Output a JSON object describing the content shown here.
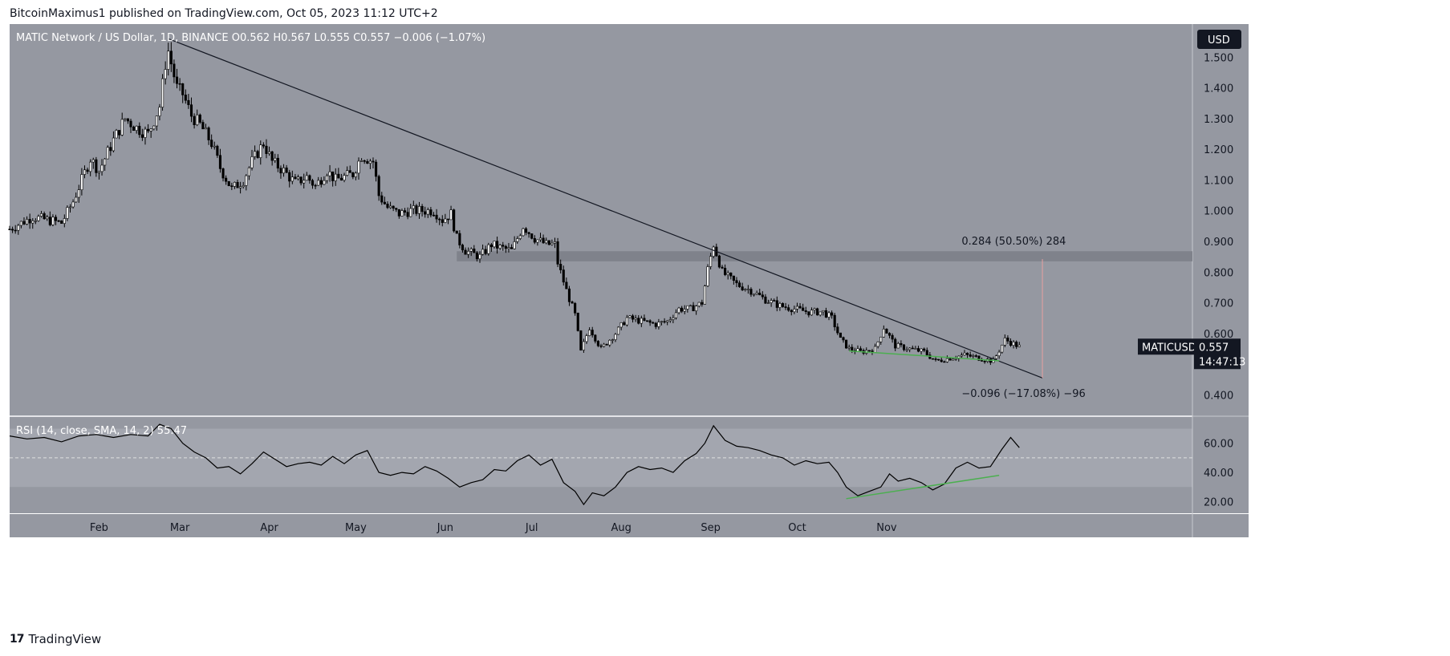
{
  "header": {
    "publisher_text": "BitcoinMaximus1 published on TradingView.com, Oct 05, 2023 11:12 UTC+2"
  },
  "footer": {
    "brand": "TradingView"
  },
  "currency_button": "USD",
  "colors": {
    "background": "#9598a1",
    "rsi_band": "#a3a6af",
    "trendline": "#131722",
    "support_green": "#4caf50",
    "resistance_zone": "#7f828b",
    "candle_up": "#ffffff",
    "candle_down": "#000000"
  },
  "chart_data": [
    {
      "type": "candlestick",
      "title": "MATIC Network / US Dollar, 1D, BINANCE",
      "ohlc": {
        "o_label": "O",
        "o": "0.562",
        "h_label": "H",
        "h": "0.567",
        "l_label": "L",
        "l": "0.555",
        "c_label": "C",
        "c": "0.557",
        "change": "−0.006 (−1.07%)"
      },
      "x_tick_labels": [
        "Feb",
        "Mar",
        "Apr",
        "May",
        "Jun",
        "Jul",
        "Aug",
        "Sep",
        "Oct",
        "Nov"
      ],
      "x_ticks_day_offset": [
        31,
        59,
        90,
        120,
        151,
        181,
        212,
        243,
        273,
        304
      ],
      "y_ticks": [
        0.4,
        0.5,
        0.6,
        0.7,
        0.8,
        0.9,
        1.0,
        1.1,
        1.2,
        1.3,
        1.4,
        1.5
      ],
      "y_tick_labels": [
        "0.400",
        "0.500",
        "0.600",
        "0.700",
        "0.800",
        "0.900",
        "1.000",
        "1.100",
        "1.200",
        "1.300",
        "1.400",
        "1.500"
      ],
      "ylim": [
        0.333,
        1.608
      ],
      "price_points_day_close": [
        [
          0,
          0.94
        ],
        [
          8,
          0.98
        ],
        [
          18,
          0.96
        ],
        [
          22,
          1.03
        ],
        [
          28,
          1.17
        ],
        [
          31,
          1.13
        ],
        [
          36,
          1.23
        ],
        [
          40,
          1.3
        ],
        [
          44,
          1.27
        ],
        [
          48,
          1.25
        ],
        [
          52,
          1.34
        ],
        [
          54,
          1.48
        ],
        [
          55,
          1.52
        ],
        [
          58,
          1.4
        ],
        [
          60,
          1.38
        ],
        [
          63,
          1.31
        ],
        [
          66,
          1.28
        ],
        [
          70,
          1.22
        ],
        [
          73,
          1.14
        ],
        [
          77,
          1.07
        ],
        [
          81,
          1.1
        ],
        [
          84,
          1.16
        ],
        [
          88,
          1.22
        ],
        [
          91,
          1.16
        ],
        [
          95,
          1.13
        ],
        [
          99,
          1.09
        ],
        [
          103,
          1.11
        ],
        [
          106,
          1.08
        ],
        [
          110,
          1.13
        ],
        [
          113,
          1.1
        ],
        [
          116,
          1.11
        ],
        [
          119,
          1.12
        ],
        [
          122,
          1.18
        ],
        [
          126,
          1.16
        ],
        [
          128,
          1.05
        ],
        [
          131,
          1.01
        ],
        [
          135,
          0.99
        ],
        [
          139,
          1.0
        ],
        [
          143,
          1.0
        ],
        [
          147,
          1.0
        ],
        [
          150,
          0.97
        ],
        [
          153,
          0.99
        ],
        [
          155,
          0.91
        ],
        [
          158,
          0.87
        ],
        [
          163,
          0.85
        ],
        [
          167,
          0.89
        ],
        [
          170,
          0.88
        ],
        [
          174,
          0.87
        ],
        [
          178,
          0.95
        ],
        [
          182,
          0.91
        ],
        [
          186,
          0.89
        ],
        [
          189,
          0.89
        ],
        [
          190,
          0.83
        ],
        [
          193,
          0.74
        ],
        [
          196,
          0.66
        ],
        [
          198,
          0.54
        ],
        [
          201,
          0.62
        ],
        [
          205,
          0.55
        ],
        [
          210,
          0.6
        ],
        [
          214,
          0.65
        ],
        [
          219,
          0.64
        ],
        [
          224,
          0.63
        ],
        [
          228,
          0.64
        ],
        [
          232,
          0.68
        ],
        [
          236,
          0.68
        ],
        [
          240,
          0.7
        ],
        [
          242,
          0.81
        ],
        [
          244,
          0.89
        ],
        [
          247,
          0.8
        ],
        [
          252,
          0.76
        ],
        [
          257,
          0.74
        ],
        [
          262,
          0.71
        ],
        [
          267,
          0.69
        ],
        [
          272,
          0.68
        ],
        [
          277,
          0.67
        ],
        [
          282,
          0.67
        ],
        [
          285,
          0.65
        ],
        [
          288,
          0.58
        ],
        [
          291,
          0.55
        ],
        [
          295,
          0.54
        ],
        [
          300,
          0.55
        ],
        [
          303,
          0.62
        ],
        [
          307,
          0.56
        ],
        [
          312,
          0.55
        ],
        [
          317,
          0.54
        ],
        [
          321,
          0.51
        ],
        [
          326,
          0.52
        ],
        [
          331,
          0.53
        ],
        [
          336,
          0.52
        ],
        [
          341,
          0.51
        ],
        [
          345,
          0.58
        ],
        [
          350,
          0.557
        ]
      ],
      "trendline": {
        "start": [
          55,
          1.56
        ],
        "end": [
          358,
          0.455
        ]
      },
      "resistance_zone": [
        0.835,
        0.868
      ],
      "support_line": {
        "start": [
          291,
          0.543
        ],
        "end": [
          343,
          0.511
        ]
      },
      "measure_upper": "0.284 (50.50%) 284",
      "measure_lower": "−0.096 (−17.08%) −96",
      "measure_range": [
        0.455,
        0.842
      ],
      "last_price_label": {
        "symbol": "MATICUSD",
        "price": "0.557",
        "countdown": "14:47:13"
      }
    },
    {
      "type": "line",
      "title": "RSI (14, close, SMA, 14, 2)",
      "value_label": "55.47",
      "y_ticks": [
        20,
        40,
        60
      ],
      "y_tick_labels": [
        "20.00",
        "40.00",
        "60.00"
      ],
      "ylim": [
        12,
        78
      ],
      "band": [
        30,
        70
      ],
      "midline": 50,
      "rsi_points": [
        [
          0,
          65
        ],
        [
          6,
          63
        ],
        [
          12,
          64
        ],
        [
          18,
          61
        ],
        [
          24,
          65
        ],
        [
          30,
          66
        ],
        [
          36,
          64
        ],
        [
          42,
          66
        ],
        [
          48,
          65
        ],
        [
          52,
          73
        ],
        [
          56,
          70
        ],
        [
          60,
          60
        ],
        [
          64,
          54
        ],
        [
          68,
          50
        ],
        [
          72,
          43
        ],
        [
          76,
          44
        ],
        [
          80,
          39
        ],
        [
          84,
          46
        ],
        [
          88,
          54
        ],
        [
          92,
          49
        ],
        [
          96,
          44
        ],
        [
          100,
          46
        ],
        [
          104,
          47
        ],
        [
          108,
          45
        ],
        [
          112,
          51
        ],
        [
          116,
          46
        ],
        [
          120,
          52
        ],
        [
          124,
          55
        ],
        [
          128,
          40
        ],
        [
          132,
          38
        ],
        [
          136,
          40
        ],
        [
          140,
          39
        ],
        [
          144,
          44
        ],
        [
          148,
          41
        ],
        [
          152,
          36
        ],
        [
          156,
          30
        ],
        [
          160,
          33
        ],
        [
          164,
          35
        ],
        [
          168,
          42
        ],
        [
          172,
          41
        ],
        [
          176,
          48
        ],
        [
          180,
          52
        ],
        [
          184,
          45
        ],
        [
          188,
          49
        ],
        [
          192,
          33
        ],
        [
          196,
          27
        ],
        [
          199,
          18
        ],
        [
          202,
          26
        ],
        [
          206,
          24
        ],
        [
          210,
          30
        ],
        [
          214,
          40
        ],
        [
          218,
          44
        ],
        [
          222,
          42
        ],
        [
          226,
          43
        ],
        [
          230,
          40
        ],
        [
          234,
          48
        ],
        [
          238,
          53
        ],
        [
          241,
          60
        ],
        [
          244,
          72
        ],
        [
          248,
          62
        ],
        [
          252,
          58
        ],
        [
          256,
          57
        ],
        [
          260,
          55
        ],
        [
          264,
          52
        ],
        [
          268,
          50
        ],
        [
          272,
          45
        ],
        [
          276,
          48
        ],
        [
          280,
          46
        ],
        [
          284,
          47
        ],
        [
          287,
          40
        ],
        [
          290,
          30
        ],
        [
          294,
          24
        ],
        [
          298,
          27
        ],
        [
          302,
          30
        ],
        [
          305,
          39
        ],
        [
          308,
          34
        ],
        [
          312,
          36
        ],
        [
          316,
          33
        ],
        [
          320,
          28
        ],
        [
          324,
          32
        ],
        [
          328,
          43
        ],
        [
          332,
          47
        ],
        [
          336,
          43
        ],
        [
          340,
          44
        ],
        [
          344,
          56
        ],
        [
          347,
          64
        ],
        [
          350,
          57
        ]
      ],
      "support_line": {
        "start": [
          290,
          22
        ],
        "end": [
          343,
          38
        ]
      }
    }
  ]
}
